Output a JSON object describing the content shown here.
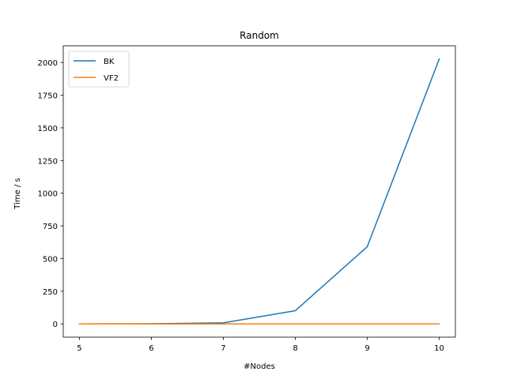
{
  "chart_data": {
    "type": "line",
    "title": "Random",
    "xlabel": "#Nodes",
    "ylabel": "Time / s",
    "x": [
      5,
      6,
      7,
      8,
      9,
      10
    ],
    "xlim": [
      4.775,
      10.225
    ],
    "ylim": [
      -101.3,
      2127.7
    ],
    "xticks": [
      5,
      6,
      7,
      8,
      9,
      10
    ],
    "yticks": [
      0,
      250,
      500,
      750,
      1000,
      1250,
      1500,
      1750,
      2000
    ],
    "grid": false,
    "legend_position": "upper left",
    "series": [
      {
        "name": "BK",
        "color": "#1f77b4",
        "values": [
          0.1,
          1,
          8,
          101,
          591,
          2026
        ]
      },
      {
        "name": "VF2",
        "color": "#ff7f0e",
        "values": [
          0,
          0,
          0,
          0,
          0,
          0
        ]
      }
    ]
  }
}
